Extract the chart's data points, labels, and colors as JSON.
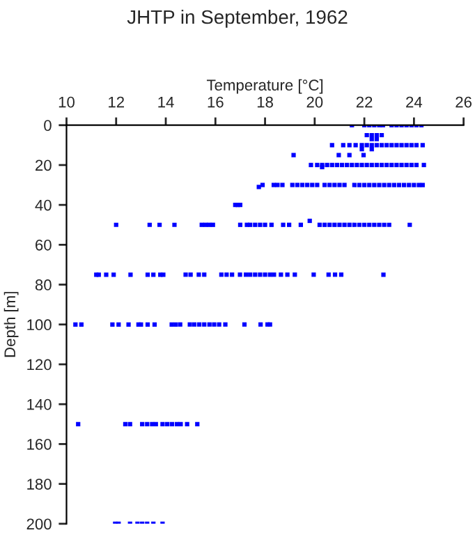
{
  "chart_data": {
    "type": "scatter",
    "title": "JHTP in September, 1962",
    "xlabel": "Temperature [°C]",
    "ylabel": "Depth [m]",
    "xlim": [
      10,
      26
    ],
    "xticks": [
      10,
      12,
      14,
      16,
      18,
      20,
      22,
      24,
      26
    ],
    "ylim": [
      200,
      0
    ],
    "yticks": [
      0,
      20,
      40,
      60,
      80,
      100,
      120,
      140,
      160,
      180,
      200
    ],
    "marker": "square",
    "grid": false,
    "series": [
      {
        "color": "#0000ff",
        "x": [
          21.5,
          22.0,
          22.2,
          22.4,
          22.6,
          22.75,
          23.1,
          23.3,
          23.5,
          23.7,
          23.9,
          24.1,
          24.3,
          22.1,
          22.3,
          22.5,
          22.7,
          22.3,
          22.5,
          20.7,
          21.15,
          21.4,
          21.65,
          21.9,
          22.1,
          22.3,
          22.5,
          22.7,
          22.9,
          23.1,
          23.3,
          23.5,
          23.7,
          23.9,
          24.1,
          24.35,
          21.9,
          22.3,
          19.15,
          20.97,
          21.4,
          21.97,
          19.85,
          20.1,
          20.3,
          20.5,
          20.7,
          20.9,
          21.1,
          21.3,
          21.5,
          21.7,
          21.9,
          22.1,
          22.3,
          22.5,
          22.7,
          22.9,
          23.1,
          23.3,
          23.5,
          23.7,
          23.9,
          24.1,
          24.4,
          20.3,
          17.75,
          17.9,
          18.35,
          18.5,
          18.7,
          19.1,
          19.3,
          19.5,
          19.7,
          19.9,
          20.1,
          20.4,
          20.6,
          20.8,
          21.0,
          21.2,
          21.6,
          21.8,
          22.0,
          22.2,
          22.4,
          22.6,
          22.8,
          23.0,
          23.2,
          23.4,
          23.6,
          23.8,
          24.0,
          24.2,
          24.35,
          16.8,
          16.9,
          17.0,
          12.0,
          13.35,
          13.75,
          14.35,
          15.45,
          15.6,
          15.75,
          15.9,
          17.0,
          17.27,
          17.4,
          17.6,
          17.8,
          18.0,
          18.26,
          18.73,
          18.97,
          19.44,
          19.8,
          20.2,
          20.4,
          20.6,
          20.8,
          21.0,
          21.2,
          21.4,
          21.6,
          21.8,
          22.0,
          22.2,
          22.4,
          22.6,
          22.8,
          23.0,
          23.83,
          11.2,
          11.3,
          11.6,
          11.9,
          12.58,
          13.27,
          13.5,
          13.78,
          13.9,
          14.8,
          15.0,
          15.33,
          15.55,
          16.24,
          16.45,
          16.67,
          16.99,
          17.23,
          17.4,
          17.6,
          17.8,
          18.0,
          18.2,
          18.36,
          18.64,
          18.9,
          19.2,
          19.96,
          20.56,
          20.82,
          21.07,
          22.77,
          10.36,
          10.6,
          11.85,
          12.1,
          12.5,
          12.9,
          13.0,
          13.27,
          13.55,
          14.24,
          14.4,
          14.58,
          14.97,
          15.15,
          15.35,
          15.55,
          15.76,
          15.95,
          16.15,
          16.4,
          17.17,
          17.82,
          18.1,
          18.2,
          10.47,
          12.37,
          12.56,
          13.05,
          13.25,
          13.45,
          13.6,
          13.87,
          14.06,
          14.25,
          14.45,
          14.6,
          14.86,
          15.27,
          11.96,
          12.1,
          12.56,
          12.86,
          13.05,
          13.25,
          13.5,
          13.87
        ],
        "values": [
          0,
          0,
          0,
          0,
          0,
          0,
          0,
          0,
          0,
          0,
          0,
          0,
          0,
          5,
          5,
          5,
          5,
          7,
          7,
          10,
          10,
          10,
          10,
          10,
          10,
          10,
          10,
          10,
          10,
          10,
          10,
          10,
          10,
          10,
          10,
          10,
          12,
          12,
          15,
          15,
          15,
          15,
          20,
          20,
          20,
          20,
          20,
          20,
          20,
          20,
          20,
          20,
          20,
          20,
          20,
          20,
          20,
          20,
          20,
          20,
          20,
          20,
          20,
          20,
          20,
          21,
          31,
          30,
          30,
          30,
          30,
          30,
          30,
          30,
          30,
          30,
          30,
          30,
          30,
          30,
          30,
          30,
          30,
          30,
          30,
          30,
          30,
          30,
          30,
          30,
          30,
          30,
          30,
          30,
          30,
          30,
          30,
          40,
          40,
          40,
          50,
          50,
          50,
          50,
          50,
          50,
          50,
          50,
          50,
          50,
          50,
          50,
          50,
          50,
          50,
          50,
          50,
          50,
          48,
          50,
          50,
          50,
          50,
          50,
          50,
          50,
          50,
          50,
          50,
          50,
          50,
          50,
          50,
          50,
          50,
          75,
          75,
          75,
          75,
          75,
          75,
          75,
          75,
          75,
          75,
          75,
          75,
          75,
          75,
          75,
          75,
          75,
          75,
          75,
          75,
          75,
          75,
          75,
          75,
          75,
          75,
          75,
          75,
          75,
          75,
          75,
          75,
          100,
          100,
          100,
          100,
          100,
          100,
          100,
          100,
          100,
          100,
          100,
          100,
          100,
          100,
          100,
          100,
          100,
          100,
          100,
          100,
          100,
          100,
          100,
          100,
          150,
          150,
          150,
          150,
          150,
          150,
          150,
          150,
          150,
          150,
          150,
          150,
          150,
          150,
          200,
          200,
          200,
          200,
          200,
          200,
          200,
          200
        ]
      }
    ]
  }
}
